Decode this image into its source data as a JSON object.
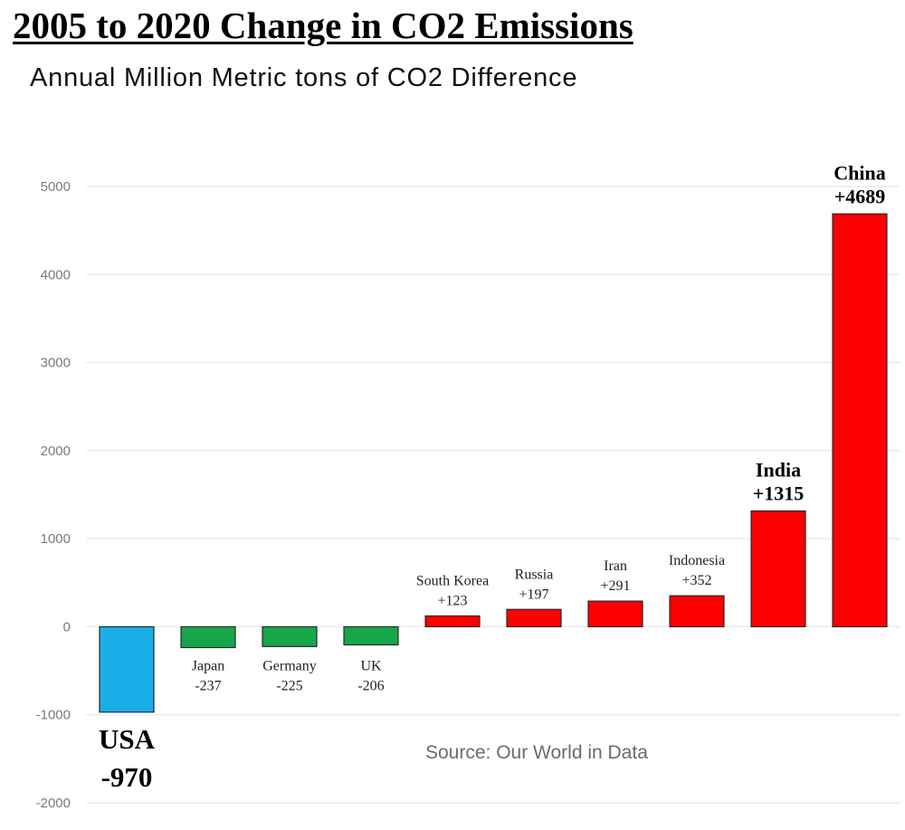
{
  "title": "2005 to 2020 Change in CO2 Emissions",
  "subtitle": "Annual Million Metric tons of CO2 Difference",
  "source": "Source: Our World in Data",
  "colors": {
    "negative_usa": "#1aaee8",
    "negative": "#17a64a",
    "positive": "#ff0000",
    "grid": "#e3e3e3",
    "outline": "#2a2a2a"
  },
  "chart_data": {
    "type": "bar",
    "title": "2005 to 2020 Change in CO2 Emissions",
    "subtitle": "Annual Million Metric tons of CO2 Difference",
    "xlabel": "",
    "ylabel": "",
    "ylim": [
      -2000,
      5000
    ],
    "yticks": [
      -2000,
      -1000,
      0,
      1000,
      2000,
      3000,
      4000,
      5000
    ],
    "grid": true,
    "categories": [
      "USA",
      "Japan",
      "Germany",
      "UK",
      "South Korea",
      "Russia",
      "Iran",
      "Indonesia",
      "India",
      "China"
    ],
    "values": [
      -970,
      -237,
      -225,
      -206,
      123,
      197,
      291,
      352,
      1315,
      4689
    ],
    "value_labels": [
      "-970",
      "-237",
      "-225",
      "-206",
      "+123",
      "+197",
      "+291",
      "+352",
      "+1315",
      "+4689"
    ],
    "bar_colors": [
      "#1aaee8",
      "#17a64a",
      "#17a64a",
      "#17a64a",
      "#ff0000",
      "#ff0000",
      "#ff0000",
      "#ff0000",
      "#ff0000",
      "#ff0000"
    ]
  }
}
